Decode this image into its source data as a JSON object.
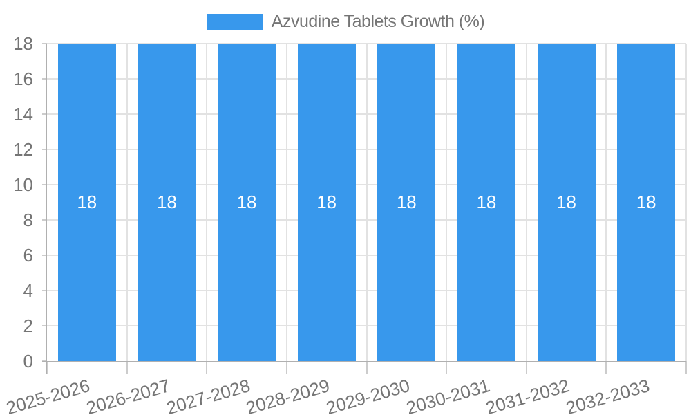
{
  "legend": {
    "label": "Azvudine Tablets Growth (%)"
  },
  "chart_data": {
    "type": "bar",
    "title": "Azvudine Tablets Growth (%)",
    "categories": [
      "2025-2026",
      "2026-2027",
      "2027-2028",
      "2028-2029",
      "2029-2030",
      "2030-2031",
      "2031-2032",
      "2032-2033"
    ],
    "series": [
      {
        "name": "Azvudine Tablets Growth (%)",
        "values": [
          18,
          18,
          18,
          18,
          18,
          18,
          18,
          18
        ]
      }
    ],
    "bar_value_labels": [
      "18",
      "18",
      "18",
      "18",
      "18",
      "18",
      "18",
      "18"
    ],
    "xlabel": "",
    "ylabel": "",
    "ylim": [
      0,
      18
    ],
    "yticks": [
      0,
      2,
      4,
      6,
      8,
      10,
      12,
      14,
      16,
      18
    ],
    "grid": true,
    "legend_position": "top",
    "x_label_rotation_deg": -16,
    "colors": {
      "bar": "#3898EC",
      "tick_text": "#757575",
      "legend_text": "#757575",
      "bar_label_text": "#FFFFFF",
      "gridline": "#E2E2E2",
      "tick_mark": "#CCCCCC",
      "axis_line": "#B0B0B0",
      "background": "#FFFFFF"
    }
  }
}
